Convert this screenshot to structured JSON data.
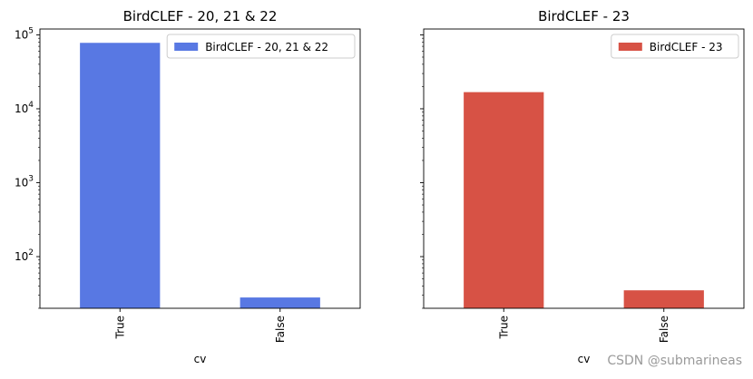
{
  "chart_data": [
    {
      "type": "bar",
      "title": "BirdCLEF - 20, 21 & 22",
      "xlabel": "cv",
      "ylabel": "",
      "yscale": "log",
      "ylim": [
        20,
        120000
      ],
      "yticks": [
        100,
        1000,
        10000,
        100000
      ],
      "categories": [
        "True",
        "False"
      ],
      "series": [
        {
          "name": "BirdCLEF - 20, 21 & 22",
          "values": [
            78000,
            28
          ],
          "color": "#5878e3"
        }
      ],
      "legend": "top-right",
      "grid": false,
      "ytick_labels_shown": true
    },
    {
      "type": "bar",
      "title": "BirdCLEF - 23",
      "xlabel": "cv",
      "ylabel": "",
      "yscale": "log",
      "ylim": [
        20,
        120000
      ],
      "yticks": [
        100,
        1000,
        10000,
        100000
      ],
      "categories": [
        "True",
        "False"
      ],
      "series": [
        {
          "name": "BirdCLEF - 23",
          "values": [
            16800,
            35
          ],
          "color": "#d75245"
        }
      ],
      "legend": "top-right",
      "grid": false,
      "ytick_labels_shown": false
    }
  ],
  "watermark": "CSDN @submarineas"
}
